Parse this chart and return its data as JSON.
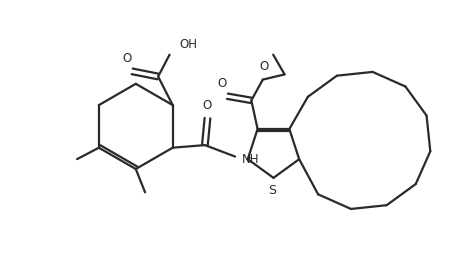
{
  "bg_color": "#ffffff",
  "line_color": "#2a2a2a",
  "line_width": 1.6,
  "fig_width": 4.69,
  "fig_height": 2.58,
  "dpi": 100,
  "xlim": [
    -4.8,
    4.2
  ],
  "ylim": [
    -2.2,
    1.8
  ]
}
